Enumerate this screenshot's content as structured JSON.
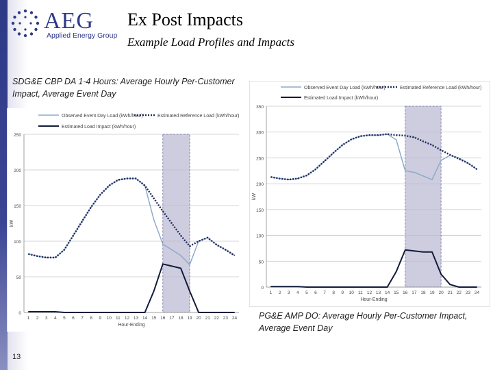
{
  "header": {
    "logo_text": "AEG",
    "logo_subtext": "Applied Energy Group",
    "title": "Ex Post Impacts",
    "subtitle": "Example Load Profiles and Impacts"
  },
  "captions": {
    "left": "SDG&E CBP DA 1-4 Hours: Average Hourly Per-Customer Impact, Average Event Day",
    "right": "PG&E AMP DO: Average Hourly Per-Customer Impact, Average Event Day"
  },
  "page_number": "13",
  "colors": {
    "observed": "#8eaacb",
    "reference": "#1f2a5e",
    "impact": "#111b3a",
    "event_band": "#b8b8d2",
    "brand": "#2e3a86"
  },
  "chart_data": [
    {
      "type": "line",
      "title": "",
      "xlabel": "Hour-Ending",
      "ylabel": "kW",
      "categories": [
        "1",
        "2",
        "3",
        "4",
        "5",
        "6",
        "7",
        "8",
        "9",
        "10",
        "11",
        "12",
        "13",
        "14",
        "15",
        "16",
        "17",
        "18",
        "19",
        "20",
        "21",
        "22",
        "23",
        "24"
      ],
      "x": [
        1,
        2,
        3,
        4,
        5,
        6,
        7,
        8,
        9,
        10,
        11,
        12,
        13,
        14,
        15,
        16,
        17,
        18,
        19,
        20,
        21,
        22,
        23,
        24
      ],
      "ylim": [
        0,
        250
      ],
      "yticks": [
        0,
        50,
        100,
        150,
        200,
        250
      ],
      "event_hours": [
        15.5,
        18.5
      ],
      "legend": [
        "Observed Event Day Load (kWh/hour)",
        "Estimated Reference Load (kWh/hour)",
        "Estimated Load Impact (kWh/hour)"
      ],
      "series": [
        {
          "name": "Observed Event Day Load (kWh/hour)",
          "style": "solid",
          "values": [
            82,
            79,
            77,
            77,
            88,
            108,
            128,
            148,
            165,
            178,
            186,
            188,
            188,
            178,
            130,
            96,
            88,
            80,
            67,
            100,
            105,
            95,
            88,
            80
          ]
        },
        {
          "name": "Estimated Reference Load (kWh/hour)",
          "style": "dotted",
          "values": [
            82,
            79,
            77,
            77,
            88,
            108,
            128,
            148,
            165,
            178,
            186,
            188,
            188,
            178,
            160,
            142,
            125,
            108,
            93,
            100,
            105,
            95,
            88,
            80
          ]
        },
        {
          "name": "Estimated Load Impact (kWh/hour)",
          "style": "solid",
          "values": [
            1,
            1,
            1,
            1,
            0,
            0,
            0,
            0,
            0,
            0,
            0,
            0,
            0,
            0,
            30,
            68,
            65,
            62,
            30,
            0,
            0,
            0,
            0,
            0
          ]
        }
      ]
    },
    {
      "type": "line",
      "title": "",
      "xlabel": "Hour-Ending",
      "ylabel": "kW",
      "categories": [
        "1",
        "2",
        "3",
        "4",
        "5",
        "6",
        "7",
        "8",
        "9",
        "10",
        "11",
        "12",
        "13",
        "14",
        "15",
        "16",
        "17",
        "18",
        "19",
        "20",
        "21",
        "22",
        "23",
        "24"
      ],
      "x": [
        1,
        2,
        3,
        4,
        5,
        6,
        7,
        8,
        9,
        10,
        11,
        12,
        13,
        14,
        15,
        16,
        17,
        18,
        19,
        20,
        21,
        22,
        23,
        24
      ],
      "ylim": [
        0,
        350
      ],
      "yticks": [
        0,
        50,
        100,
        150,
        200,
        250,
        300,
        350
      ],
      "event_hours": [
        15.5,
        19.5
      ],
      "legend": [
        "Observed Event Day Load (kWh/hour)",
        "Estimated Reference Load (kWh/hour)",
        "Estimated Load Impact (kWh/hour)"
      ],
      "series": [
        {
          "name": "Observed Event Day Load (kWh/hour)",
          "style": "solid",
          "values": [
            213,
            210,
            208,
            210,
            216,
            228,
            244,
            260,
            275,
            286,
            292,
            294,
            294,
            296,
            285,
            225,
            222,
            215,
            208,
            245,
            255,
            250,
            240,
            228
          ]
        },
        {
          "name": "Estimated Reference Load (kWh/hour)",
          "style": "dotted",
          "values": [
            213,
            210,
            208,
            210,
            216,
            228,
            244,
            260,
            275,
            286,
            292,
            294,
            294,
            296,
            294,
            293,
            290,
            282,
            275,
            265,
            256,
            248,
            240,
            228
          ]
        },
        {
          "name": "Estimated Load Impact (kWh/hour)",
          "style": "solid",
          "values": [
            1,
            1,
            1,
            1,
            0,
            0,
            0,
            0,
            0,
            0,
            0,
            0,
            0,
            0,
            30,
            72,
            70,
            68,
            68,
            25,
            5,
            0,
            0,
            0
          ]
        }
      ]
    }
  ]
}
